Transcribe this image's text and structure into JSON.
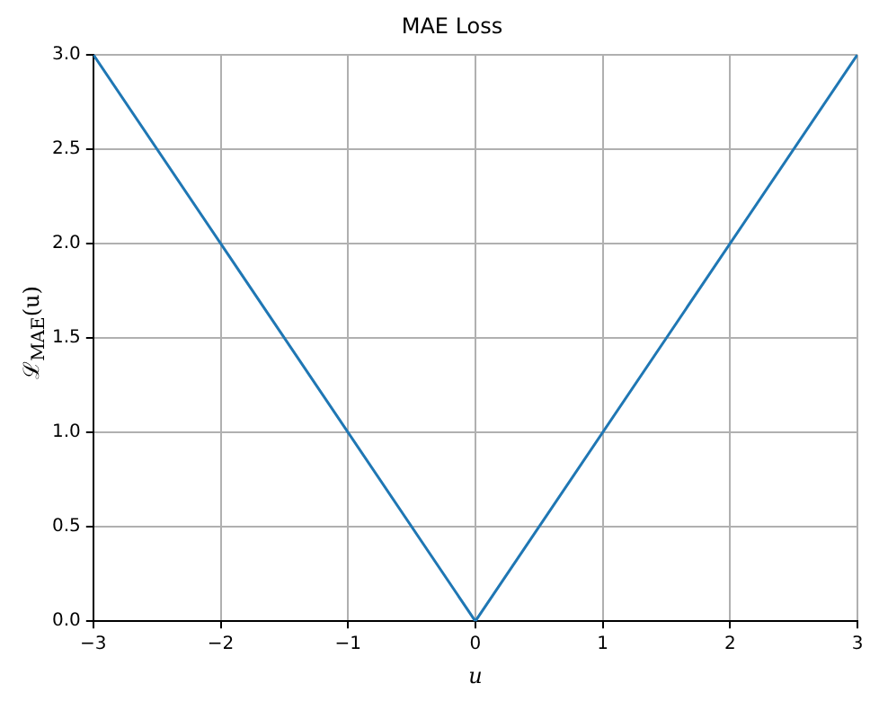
{
  "chart_data": {
    "type": "line",
    "title": "MAE Loss",
    "xlabel": "u",
    "ylabel": "ℒ$_{MAE}$(u)",
    "x": [
      -3,
      0,
      3
    ],
    "series": [
      {
        "color": "#1f77b4",
        "values": [
          3,
          0,
          3
        ]
      }
    ],
    "xlim": [
      -3,
      3
    ],
    "ylim": [
      0,
      3
    ],
    "xticks": [
      {
        "value": -3,
        "label": "−3"
      },
      {
        "value": -2,
        "label": "−2"
      },
      {
        "value": -1,
        "label": "−1"
      },
      0,
      1,
      2,
      3
    ],
    "yticks": [
      {
        "value": 0,
        "label": "0.0"
      },
      {
        "value": 0.5,
        "label": "0.5"
      },
      {
        "value": 1,
        "label": "1.0"
      },
      {
        "value": 1.5,
        "label": "1.5"
      },
      {
        "value": 2,
        "label": "2.0"
      },
      {
        "value": 2.5,
        "label": "2.5"
      },
      {
        "value": 3,
        "label": "3.0"
      }
    ],
    "grid": true,
    "legend": false,
    "marker": "none",
    "line_style": "solid"
  }
}
